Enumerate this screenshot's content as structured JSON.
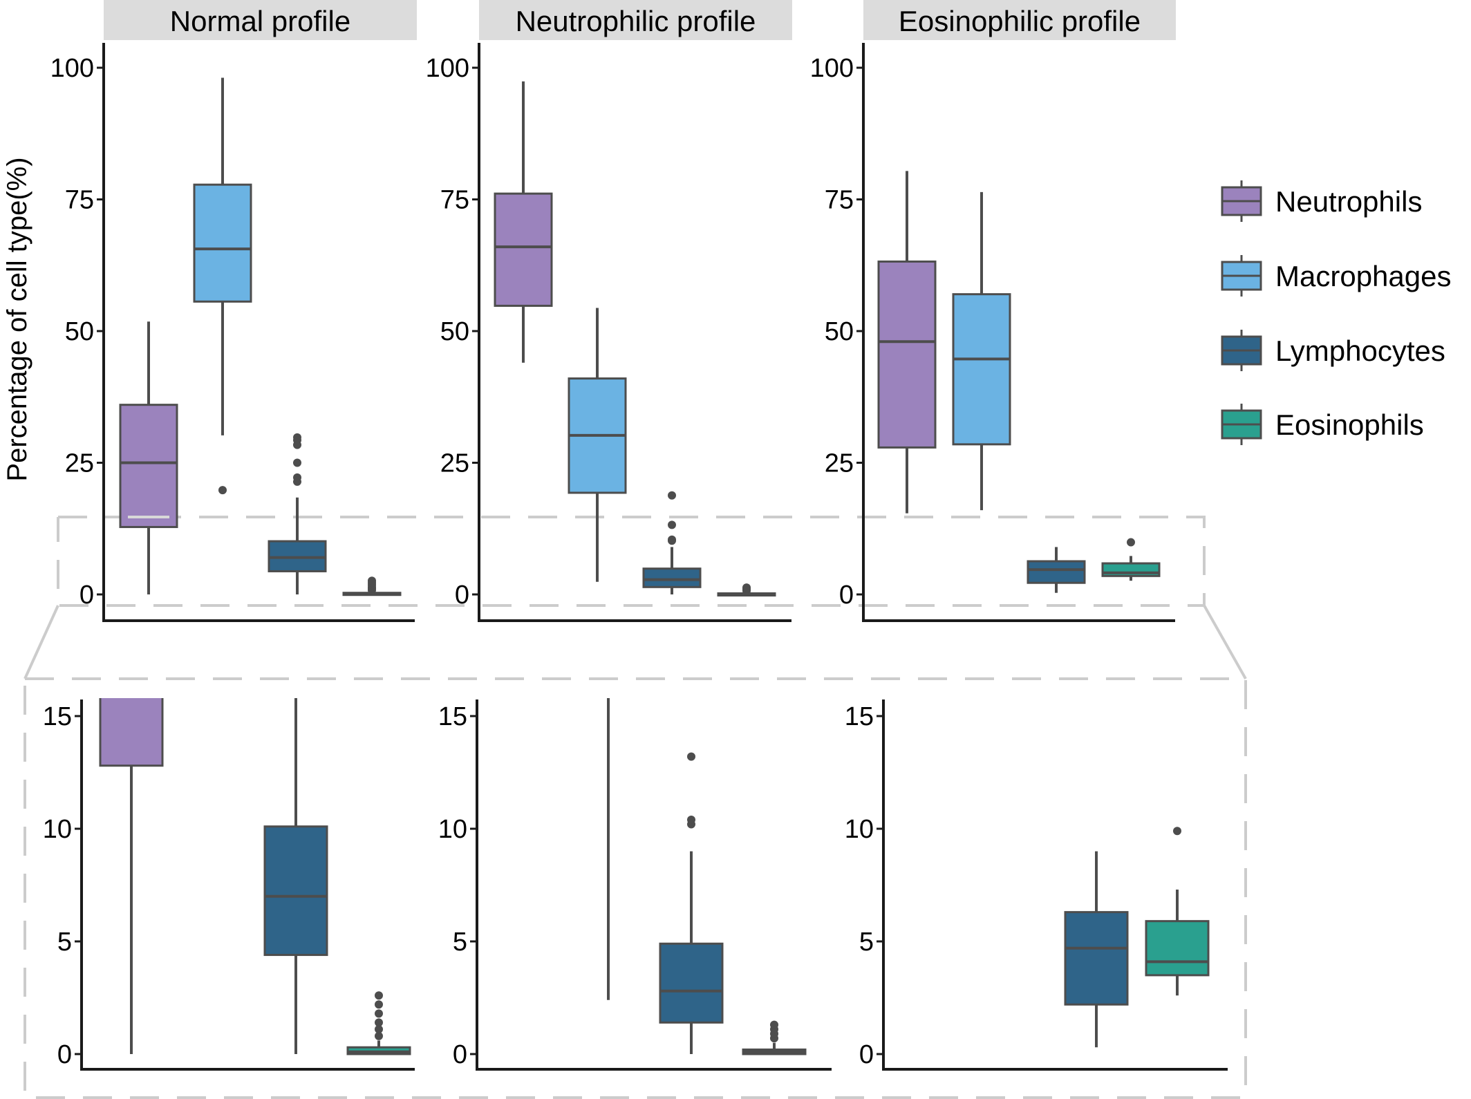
{
  "chart_data": {
    "type": "box",
    "ylabel": "Percentage of cell type(%)",
    "legend": {
      "placement": "right",
      "entries": [
        {
          "name": "Neutrophils",
          "color": "#9b83bd"
        },
        {
          "name": "Macrophages",
          "color": "#6bb3e3"
        },
        {
          "name": "Lymphocytes",
          "color": "#2f6489"
        },
        {
          "name": "Eosinophils",
          "color": "#2aa08f"
        }
      ]
    },
    "colors": {
      "strip_background": "#dcdcdc",
      "box_outline": "#4d4d4d",
      "zoom_guide": "#cccccc",
      "median_highlight": "#d8d8d8"
    },
    "panels": [
      {
        "title": "Normal profile",
        "ylim": [
          0,
          100
        ],
        "yticks": [
          0,
          25,
          50,
          75,
          100
        ],
        "boxes": [
          {
            "series": "Neutrophils",
            "q1": 12.8,
            "median": 25,
            "q3": 36,
            "lower": 0,
            "upper": 51.8,
            "outliers": [],
            "extra_line": 14.7
          },
          {
            "series": "Macrophages",
            "q1": 55.6,
            "median": 65.6,
            "q3": 77.8,
            "lower": 30.2,
            "upper": 98.1,
            "outliers": [
              19.8
            ]
          },
          {
            "series": "Lymphocytes",
            "q1": 4.4,
            "median": 7,
            "q3": 10.1,
            "lower": 0,
            "upper": 18.4,
            "outliers": [
              21.4,
              22.2,
              25,
              28.4,
              29.3,
              29.8
            ]
          },
          {
            "series": "Eosinophils",
            "q1": 0,
            "median": 0.1,
            "q3": 0.3,
            "lower": 0,
            "upper": 0.6,
            "outliers": [
              0.8,
              1.1,
              1.4,
              1.8,
              2.2,
              2.6
            ]
          }
        ]
      },
      {
        "title": "Neutrophilic profile",
        "ylim": [
          0,
          100
        ],
        "yticks": [
          0,
          25,
          50,
          75,
          100
        ],
        "boxes": [
          {
            "series": "Neutrophils",
            "q1": 54.8,
            "median": 66,
            "q3": 76.1,
            "lower": 44,
            "upper": 97.4,
            "outliers": []
          },
          {
            "series": "Macrophages",
            "q1": 19.3,
            "median": 30.2,
            "q3": 41,
            "lower": 2.4,
            "upper": 54.4,
            "outliers": []
          },
          {
            "series": "Lymphocytes",
            "q1": 1.4,
            "median": 2.8,
            "q3": 4.9,
            "lower": 0,
            "upper": 9,
            "outliers": [
              10.2,
              10.4,
              13.2,
              18.8
            ]
          },
          {
            "series": "Eosinophils",
            "q1": 0,
            "median": 0.1,
            "q3": 0.2,
            "lower": 0,
            "upper": 0.5,
            "outliers": [
              0.7,
              0.9,
              1.1,
              1.3
            ]
          }
        ]
      },
      {
        "title": "Eosinophilic profile",
        "ylim": [
          0,
          100
        ],
        "yticks": [
          0,
          25,
          50,
          75,
          100
        ],
        "boxes": [
          {
            "series": "Neutrophils",
            "q1": 27.9,
            "median": 48,
            "q3": 63.2,
            "lower": 15.4,
            "upper": 80.4,
            "outliers": []
          },
          {
            "series": "Macrophages",
            "q1": 28.5,
            "median": 44.7,
            "q3": 57,
            "lower": 16,
            "upper": 76.4,
            "outliers": []
          },
          {
            "series": "Lymphocytes",
            "q1": 2.2,
            "median": 4.7,
            "q3": 6.3,
            "lower": 0.3,
            "upper": 9,
            "outliers": []
          },
          {
            "series": "Eosinophils",
            "q1": 3.5,
            "median": 4.1,
            "q3": 5.9,
            "lower": 2.6,
            "upper": 7.3,
            "outliers": [
              9.9
            ]
          }
        ]
      },
      {
        "title": "",
        "zoom_of": "Normal profile",
        "ylim": [
          0,
          15
        ],
        "yticks": [
          0,
          5,
          10,
          15
        ],
        "series_shown": [
          "Neutrophils",
          "Lymphocytes",
          "Eosinophils"
        ]
      },
      {
        "title": "",
        "zoom_of": "Neutrophilic profile",
        "ylim": [
          0,
          15
        ],
        "yticks": [
          0,
          5,
          10,
          15
        ],
        "series_shown": [
          "Macrophages",
          "Lymphocytes",
          "Eosinophils"
        ]
      },
      {
        "title": "",
        "zoom_of": "Eosinophilic profile",
        "ylim": [
          0,
          15
        ],
        "yticks": [
          0,
          5,
          10,
          15
        ],
        "series_shown": [
          "Lymphocytes",
          "Eosinophils"
        ]
      }
    ]
  }
}
